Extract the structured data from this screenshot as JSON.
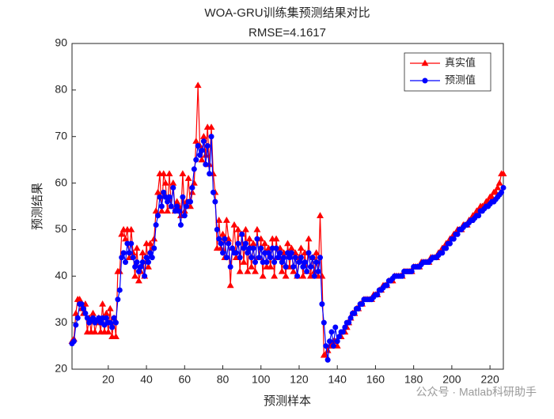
{
  "chart_data": {
    "type": "line",
    "title": "WOA-GRU训练集预测结果对比",
    "subtitle": "RMSE=4.1617",
    "x_label": "预测样本",
    "y_label": "预测结果",
    "watermark": "公众号 · Matlab科研助手",
    "legend_position": "upper right",
    "xlim": [
      1,
      227
    ],
    "ylim": [
      20,
      90
    ],
    "xticks": [
      20,
      40,
      60,
      80,
      100,
      120,
      140,
      160,
      180,
      200,
      220
    ],
    "yticks": [
      20,
      30,
      40,
      50,
      60,
      70,
      80,
      90
    ],
    "x": [
      1,
      2,
      3,
      4,
      5,
      6,
      7,
      8,
      9,
      10,
      11,
      12,
      13,
      14,
      15,
      16,
      17,
      18,
      19,
      20,
      21,
      22,
      23,
      24,
      25,
      26,
      27,
      28,
      29,
      30,
      31,
      32,
      33,
      34,
      35,
      36,
      37,
      38,
      39,
      40,
      41,
      42,
      43,
      44,
      45,
      46,
      47,
      48,
      49,
      50,
      51,
      52,
      53,
      54,
      55,
      56,
      57,
      58,
      59,
      60,
      61,
      62,
      63,
      64,
      65,
      66,
      67,
      68,
      69,
      70,
      71,
      72,
      73,
      74,
      75,
      76,
      77,
      78,
      79,
      80,
      81,
      82,
      83,
      84,
      85,
      86,
      87,
      88,
      89,
      90,
      91,
      92,
      93,
      94,
      95,
      96,
      97,
      98,
      99,
      100,
      101,
      102,
      103,
      104,
      105,
      106,
      107,
      108,
      109,
      110,
      111,
      112,
      113,
      114,
      115,
      116,
      117,
      118,
      119,
      120,
      121,
      122,
      123,
      124,
      125,
      126,
      127,
      128,
      129,
      130,
      131,
      132,
      133,
      134,
      135,
      136,
      137,
      138,
      139,
      140,
      141,
      142,
      143,
      144,
      145,
      146,
      147,
      148,
      149,
      150,
      151,
      152,
      153,
      154,
      155,
      156,
      157,
      158,
      159,
      160,
      161,
      162,
      163,
      164,
      165,
      166,
      167,
      168,
      169,
      170,
      171,
      172,
      173,
      174,
      175,
      176,
      177,
      178,
      179,
      180,
      181,
      182,
      183,
      184,
      185,
      186,
      187,
      188,
      189,
      190,
      191,
      192,
      193,
      194,
      195,
      196,
      197,
      198,
      199,
      200,
      201,
      202,
      203,
      204,
      205,
      206,
      207,
      208,
      209,
      210,
      211,
      212,
      213,
      214,
      215,
      216,
      217,
      218,
      219,
      220,
      221,
      222,
      223,
      224,
      225,
      226,
      227
    ],
    "series": [
      {
        "name": "真实值",
        "color": "#ff0000",
        "marker": "triangle",
        "values": [
          26,
          26.5,
          32,
          35,
          35,
          33,
          32,
          34,
          28,
          31,
          28,
          32,
          28,
          30,
          31,
          28,
          34,
          28,
          32,
          28,
          33,
          27,
          31,
          27,
          41,
          41,
          49,
          50,
          48,
          50,
          44,
          50,
          45,
          40,
          46,
          39,
          41,
          45,
          40,
          47,
          42,
          47,
          46,
          48,
          54,
          58,
          62,
          54,
          62,
          60,
          54,
          62,
          55,
          60,
          54,
          56,
          55,
          53,
          62,
          54,
          56,
          61,
          55,
          58,
          60,
          69,
          81,
          68,
          65,
          70,
          66,
          72,
          64,
          72,
          62,
          58,
          46,
          52,
          46,
          49,
          44,
          52,
          48,
          38,
          46,
          51,
          44,
          50,
          41,
          49,
          43,
          50,
          41,
          48,
          42,
          47,
          41,
          50,
          44,
          48,
          40,
          47,
          42,
          46,
          42,
          48,
          40,
          48,
          44,
          46,
          41,
          45,
          40,
          47,
          42,
          46,
          41,
          45,
          40,
          44,
          46,
          40,
          45,
          41,
          48,
          40,
          44,
          41,
          45,
          40,
          53,
          40,
          23,
          23,
          24,
          25,
          25,
          26,
          26,
          25,
          27,
          27,
          28,
          28,
          29,
          30,
          31,
          32,
          32,
          33,
          33,
          34,
          34,
          35,
          35,
          35,
          35,
          35,
          36,
          36,
          36,
          37,
          37,
          38,
          38,
          38,
          39,
          39,
          39,
          40,
          40,
          40,
          40,
          40,
          41,
          41,
          41,
          41,
          41,
          42,
          42,
          42,
          42,
          43,
          43,
          43,
          43,
          43,
          44,
          44,
          44,
          44,
          45,
          45,
          46,
          46,
          47,
          47,
          48,
          48,
          49,
          49,
          50,
          50,
          50,
          51,
          51,
          51,
          52,
          52,
          53,
          53,
          54,
          54,
          55,
          55,
          55,
          56,
          56,
          57,
          57,
          58,
          58,
          59,
          60,
          62,
          62
        ]
      },
      {
        "name": "预测值",
        "color": "#0000ff",
        "marker": "circle",
        "values": [
          25.5,
          26,
          29.5,
          31,
          34,
          34,
          33,
          32,
          31,
          30,
          30.5,
          31,
          30,
          30.5,
          31,
          30,
          31,
          29.5,
          31,
          30,
          30,
          29,
          31,
          30,
          35,
          37,
          44,
          45,
          43,
          47,
          45,
          47,
          44,
          42,
          43,
          41,
          42,
          43,
          40,
          44,
          43,
          45,
          44,
          46,
          51,
          53,
          57,
          55,
          58,
          57,
          56,
          57,
          55,
          59,
          54,
          55,
          54,
          51,
          57,
          53,
          55,
          56,
          56,
          59,
          63,
          65,
          68,
          66,
          67,
          69,
          64,
          68,
          62,
          70,
          58,
          56,
          50,
          48,
          47,
          45,
          48,
          44,
          47,
          42,
          46,
          45,
          45,
          47,
          44,
          49,
          46,
          47,
          45,
          46,
          44,
          46,
          43,
          48,
          44,
          46,
          43,
          45,
          43,
          45,
          44,
          46,
          43,
          46,
          44,
          45,
          43,
          44,
          42,
          45,
          44,
          45,
          42,
          44,
          40,
          43,
          44,
          42,
          43,
          41,
          45,
          42,
          44,
          40,
          43,
          41,
          44,
          34,
          30,
          25,
          22,
          26,
          28,
          25,
          29,
          26,
          27,
          28,
          28,
          29,
          30,
          30,
          31,
          32,
          32,
          33,
          33,
          34,
          34,
          35,
          35,
          35,
          35,
          35,
          35.5,
          36,
          36,
          37,
          37,
          37.5,
          38,
          38,
          39,
          39,
          39.5,
          40,
          40,
          40,
          40,
          40,
          41,
          41,
          41,
          41,
          41,
          42,
          42,
          42,
          42,
          42.5,
          43,
          43,
          43,
          43,
          43.5,
          44,
          44,
          44,
          44.5,
          45,
          45,
          46,
          46,
          47,
          47,
          48,
          48,
          49,
          49,
          50,
          50,
          50.5,
          51,
          51,
          51.5,
          52,
          52,
          52.5,
          53,
          53,
          54,
          54,
          54.5,
          55,
          55,
          55.5,
          56,
          56,
          56.5,
          57,
          57.5,
          58,
          59
        ]
      }
    ]
  }
}
